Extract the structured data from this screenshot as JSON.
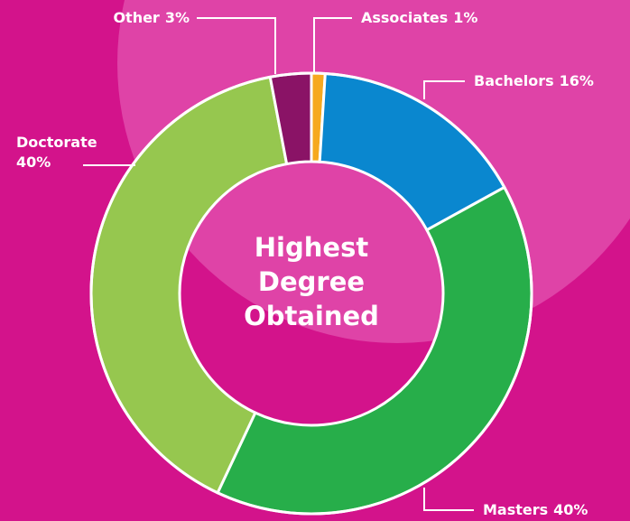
{
  "chart_data": {
    "type": "donut",
    "title": "Highest Degree Obtained",
    "categories": [
      "Associates",
      "Bachelors",
      "Masters",
      "Doctorate",
      "Other"
    ],
    "values": [
      1,
      16,
      40,
      40,
      3
    ],
    "value_labels": [
      "1%",
      "16%",
      "40%",
      "40%",
      "3%"
    ],
    "colors": [
      "#f6a91f",
      "#0a87cf",
      "#27ae4a",
      "#96c74f",
      "#8a1366"
    ]
  }
}
